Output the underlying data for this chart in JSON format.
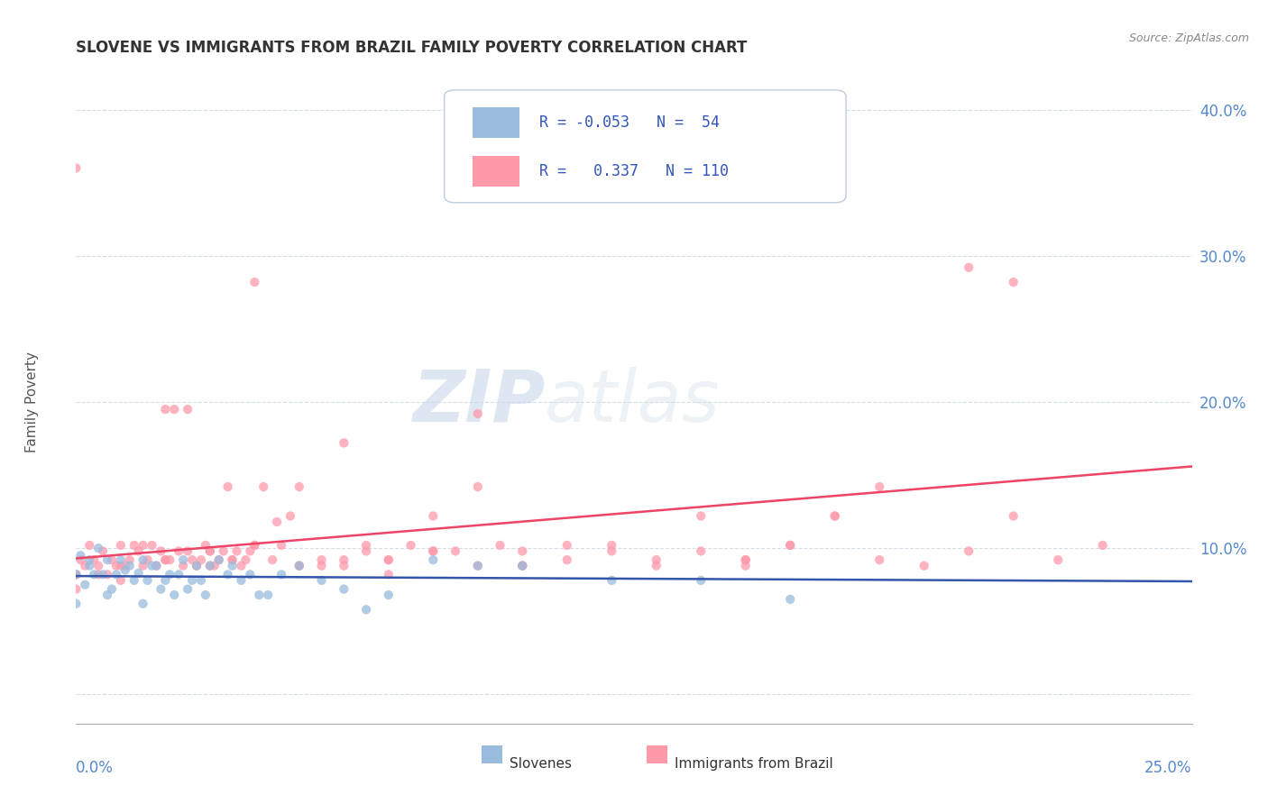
{
  "title": "SLOVENE VS IMMIGRANTS FROM BRAZIL FAMILY POVERTY CORRELATION CHART",
  "source_text": "Source: ZipAtlas.com",
  "ylabel": "Family Poverty",
  "yticks": [
    0.0,
    0.1,
    0.2,
    0.3,
    0.4
  ],
  "ytick_labels": [
    "",
    "10.0%",
    "20.0%",
    "30.0%",
    "40.0%"
  ],
  "xlim": [
    0.0,
    0.25
  ],
  "ylim": [
    -0.02,
    0.42
  ],
  "legend_R1": "-0.053",
  "legend_N1": "54",
  "legend_R2": "0.337",
  "legend_N2": "110",
  "color_slovene": "#99BBDD",
  "color_brazil": "#FF99AA",
  "color_line_slovene": "#3355AA",
  "color_line_brazil": "#EE4466",
  "watermark_zip": "ZIP",
  "watermark_atlas": "atlas",
  "slovene_x": [
    0.0,
    0.001,
    0.002,
    0.003,
    0.004,
    0.005,
    0.006,
    0.007,
    0.008,
    0.009,
    0.01,
    0.011,
    0.012,
    0.013,
    0.014,
    0.015,
    0.016,
    0.017,
    0.018,
    0.019,
    0.02,
    0.021,
    0.022,
    0.023,
    0.024,
    0.025,
    0.026,
    0.027,
    0.028,
    0.029,
    0.03,
    0.032,
    0.034,
    0.035,
    0.037,
    0.039,
    0.041,
    0.043,
    0.046,
    0.05,
    0.055,
    0.06,
    0.065,
    0.07,
    0.08,
    0.09,
    0.1,
    0.12,
    0.14,
    0.16,
    0.0,
    0.003,
    0.007,
    0.015
  ],
  "slovene_y": [
    0.082,
    0.095,
    0.075,
    0.088,
    0.082,
    0.1,
    0.082,
    0.092,
    0.072,
    0.082,
    0.092,
    0.085,
    0.088,
    0.078,
    0.083,
    0.092,
    0.078,
    0.088,
    0.088,
    0.072,
    0.078,
    0.082,
    0.068,
    0.082,
    0.092,
    0.072,
    0.078,
    0.088,
    0.078,
    0.068,
    0.088,
    0.092,
    0.082,
    0.088,
    0.078,
    0.082,
    0.068,
    0.068,
    0.082,
    0.088,
    0.078,
    0.072,
    0.058,
    0.068,
    0.092,
    0.088,
    0.088,
    0.078,
    0.078,
    0.065,
    0.062,
    0.092,
    0.068,
    0.062
  ],
  "brazil_x": [
    0.0,
    0.0,
    0.001,
    0.002,
    0.003,
    0.004,
    0.005,
    0.006,
    0.007,
    0.008,
    0.009,
    0.01,
    0.011,
    0.012,
    0.013,
    0.014,
    0.015,
    0.016,
    0.017,
    0.018,
    0.019,
    0.02,
    0.021,
    0.022,
    0.023,
    0.024,
    0.025,
    0.026,
    0.027,
    0.028,
    0.029,
    0.03,
    0.031,
    0.032,
    0.033,
    0.034,
    0.035,
    0.036,
    0.037,
    0.038,
    0.039,
    0.04,
    0.042,
    0.044,
    0.046,
    0.048,
    0.05,
    0.055,
    0.06,
    0.065,
    0.07,
    0.075,
    0.08,
    0.085,
    0.09,
    0.095,
    0.1,
    0.11,
    0.12,
    0.13,
    0.14,
    0.15,
    0.16,
    0.17,
    0.18,
    0.19,
    0.2,
    0.21,
    0.22,
    0.23,
    0.0,
    0.005,
    0.01,
    0.015,
    0.02,
    0.025,
    0.03,
    0.035,
    0.04,
    0.045,
    0.05,
    0.055,
    0.06,
    0.065,
    0.07,
    0.08,
    0.09,
    0.1,
    0.11,
    0.12,
    0.13,
    0.14,
    0.15,
    0.16,
    0.17,
    0.18,
    0.0,
    0.01,
    0.02,
    0.03,
    0.04,
    0.05,
    0.06,
    0.07,
    0.08,
    0.09,
    0.1,
    0.15,
    0.2,
    0.21
  ],
  "brazil_y": [
    0.082,
    0.072,
    0.092,
    0.088,
    0.102,
    0.092,
    0.088,
    0.098,
    0.082,
    0.092,
    0.088,
    0.102,
    0.088,
    0.092,
    0.102,
    0.098,
    0.088,
    0.092,
    0.102,
    0.088,
    0.098,
    0.195,
    0.092,
    0.195,
    0.098,
    0.088,
    0.195,
    0.092,
    0.088,
    0.092,
    0.102,
    0.098,
    0.088,
    0.092,
    0.098,
    0.142,
    0.092,
    0.098,
    0.088,
    0.092,
    0.098,
    0.102,
    0.142,
    0.092,
    0.102,
    0.122,
    0.142,
    0.088,
    0.092,
    0.098,
    0.082,
    0.102,
    0.122,
    0.098,
    0.142,
    0.102,
    0.088,
    0.102,
    0.098,
    0.092,
    0.122,
    0.088,
    0.102,
    0.122,
    0.092,
    0.088,
    0.098,
    0.122,
    0.092,
    0.102,
    0.082,
    0.082,
    0.078,
    0.102,
    0.092,
    0.098,
    0.088,
    0.092,
    0.102,
    0.118,
    0.088,
    0.092,
    0.088,
    0.102,
    0.092,
    0.098,
    0.088,
    0.098,
    0.092,
    0.102,
    0.088,
    0.098,
    0.092,
    0.102,
    0.122,
    0.142,
    0.36,
    0.088,
    0.092,
    0.098,
    0.282,
    0.088,
    0.172,
    0.092,
    0.098,
    0.192,
    0.088,
    0.092,
    0.292,
    0.282
  ]
}
